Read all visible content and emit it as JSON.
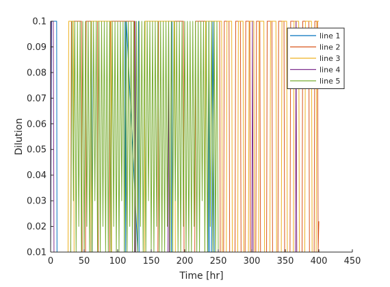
{
  "chart_data": {
    "type": "line",
    "xlabel": "Time [hr]",
    "ylabel": "Dilution",
    "xlim": [
      0,
      450
    ],
    "ylim": [
      0.01,
      0.1
    ],
    "xticks": [
      "0",
      "50",
      "100",
      "150",
      "200",
      "250",
      "300",
      "350",
      "400",
      "450"
    ],
    "yticks": [
      "0.01",
      "0.02",
      "0.03",
      "0.04",
      "0.05",
      "0.06",
      "0.07",
      "0.08",
      "0.09",
      "0.1"
    ],
    "grid": false,
    "legend_position": "top-right",
    "series": [
      {
        "name": "line 1",
        "color": "#0072BD",
        "x": [
          0,
          1.5,
          3,
          8,
          9,
          9.5,
          60,
          61,
          62,
          110,
          111,
          112,
          113,
          130,
          131,
          132,
          180,
          181,
          182,
          235,
          236,
          237,
          240,
          242,
          244
        ],
        "y": [
          0.01,
          0.1,
          0.1,
          0.1,
          0.1,
          0.01,
          0.01,
          0.1,
          0.01,
          0.01,
          0.1,
          0.01,
          0.1,
          0.01,
          0.1,
          0.01,
          0.01,
          0.1,
          0.01,
          0.01,
          0.1,
          0.01,
          0.01,
          0.1,
          0.01
        ]
      },
      {
        "name": "line 2",
        "color": "#D95319",
        "x": [
          0,
          30,
          31,
          46,
          47,
          52,
          53,
          70,
          71,
          88,
          89,
          125,
          126,
          160,
          161,
          198,
          199,
          215,
          216,
          252,
          253,
          258,
          259,
          266,
          267,
          275,
          276,
          283,
          284,
          290,
          291,
          297,
          298,
          306,
          307,
          312,
          313,
          322,
          323,
          330,
          331,
          339,
          340,
          348,
          349,
          357,
          358,
          366,
          367,
          375,
          376,
          385,
          386,
          393,
          394,
          398,
          399,
          400
        ],
        "y": [
          0.01,
          0.01,
          0.1,
          0.1,
          0.01,
          0.01,
          0.1,
          0.1,
          0.01,
          0.01,
          0.1,
          0.1,
          0.01,
          0.01,
          0.1,
          0.1,
          0.01,
          0.01,
          0.1,
          0.1,
          0.01,
          0.01,
          0.1,
          0.1,
          0.01,
          0.01,
          0.1,
          0.1,
          0.01,
          0.01,
          0.1,
          0.1,
          0.01,
          0.01,
          0.1,
          0.1,
          0.01,
          0.01,
          0.1,
          0.1,
          0.01,
          0.01,
          0.1,
          0.1,
          0.01,
          0.01,
          0.1,
          0.1,
          0.01,
          0.01,
          0.1,
          0.1,
          0.01,
          0.01,
          0.1,
          0.1,
          0.01,
          0.022
        ]
      },
      {
        "name": "line 3",
        "color": "#EDB120",
        "x": [
          0,
          26,
          27,
          34,
          35,
          60,
          61,
          90,
          91,
          140,
          141,
          185,
          186,
          230,
          231,
          255,
          256,
          262,
          263,
          270,
          271,
          279,
          280,
          287,
          288,
          295,
          296,
          303,
          304,
          310,
          311,
          318,
          319,
          327,
          328,
          336,
          337,
          344,
          345,
          352,
          353,
          362,
          363,
          370,
          371,
          379,
          380,
          389,
          390,
          396,
          397,
          400
        ],
        "y": [
          0.01,
          0.01,
          0.1,
          0.1,
          0.01,
          0.01,
          0.1,
          0.1,
          0.01,
          0.01,
          0.1,
          0.1,
          0.01,
          0.01,
          0.1,
          0.1,
          0.01,
          0.01,
          0.1,
          0.1,
          0.01,
          0.01,
          0.1,
          0.1,
          0.01,
          0.01,
          0.1,
          0.1,
          0.01,
          0.01,
          0.1,
          0.1,
          0.01,
          0.01,
          0.1,
          0.1,
          0.01,
          0.01,
          0.1,
          0.1,
          0.01,
          0.01,
          0.1,
          0.1,
          0.01,
          0.01,
          0.1,
          0.1,
          0.01,
          0.01,
          0.1,
          0.1
        ]
      },
      {
        "name": "line 4",
        "color": "#7E2F8E",
        "x": [
          0,
          1,
          2,
          4,
          5,
          125,
          126,
          127,
          175,
          176,
          177,
          300,
          301,
          302,
          365,
          366,
          367
        ],
        "y": [
          0.01,
          0.1,
          0.1,
          0.1,
          0.01,
          0.01,
          0.1,
          0.01,
          0.01,
          0.1,
          0.01,
          0.01,
          0.1,
          0.01,
          0.01,
          0.1,
          0.01
        ]
      },
      {
        "name": "line 5",
        "color": "#77AC30",
        "x": [
          0,
          30,
          32,
          34,
          36,
          38,
          40,
          42,
          44,
          46,
          48,
          50,
          52,
          54,
          56,
          58,
          60,
          62,
          64,
          66,
          68,
          70,
          72,
          74,
          76,
          78,
          80,
          82,
          84,
          86,
          88,
          90,
          92,
          94,
          96,
          98,
          100,
          102,
          104,
          106,
          108,
          110,
          112,
          114,
          116,
          118,
          120,
          122,
          124,
          126,
          128,
          130,
          132,
          134,
          136,
          138,
          140,
          142,
          144,
          146,
          148,
          150,
          152,
          154,
          156,
          158,
          160,
          162,
          164,
          166,
          168,
          170,
          172,
          174,
          176,
          178,
          180,
          182,
          184,
          186,
          188,
          190,
          192,
          194,
          196,
          198,
          200,
          202,
          204,
          206,
          208,
          210,
          212,
          214,
          216,
          218,
          220,
          222,
          224,
          226,
          228,
          230,
          232,
          234,
          236,
          238,
          240,
          242,
          244,
          246,
          248,
          250
        ],
        "y": [
          0.01,
          0.01,
          0.1,
          0.03,
          0.1,
          0.01,
          0.1,
          0.02,
          0.1,
          0.01,
          0.1,
          0.01,
          0.1,
          0.02,
          0.1,
          0.01,
          0.1,
          0.01,
          0.1,
          0.03,
          0.1,
          0.01,
          0.1,
          0.01,
          0.1,
          0.02,
          0.1,
          0.01,
          0.1,
          0.01,
          0.1,
          0.01,
          0.1,
          0.02,
          0.1,
          0.01,
          0.1,
          0.01,
          0.1,
          0.03,
          0.1,
          0.01,
          0.1,
          0.01,
          0.1,
          0.02,
          0.1,
          0.01,
          0.1,
          0.01,
          0.1,
          0.01,
          0.1,
          0.02,
          0.1,
          0.01,
          0.1,
          0.01,
          0.1,
          0.03,
          0.1,
          0.01,
          0.1,
          0.01,
          0.1,
          0.02,
          0.1,
          0.01,
          0.1,
          0.01,
          0.1,
          0.01,
          0.1,
          0.02,
          0.1,
          0.01,
          0.1,
          0.01,
          0.1,
          0.03,
          0.1,
          0.01,
          0.1,
          0.01,
          0.1,
          0.02,
          0.1,
          0.01,
          0.1,
          0.01,
          0.1,
          0.01,
          0.1,
          0.02,
          0.1,
          0.01,
          0.1,
          0.01,
          0.1,
          0.03,
          0.1,
          0.01,
          0.1,
          0.01,
          0.1,
          0.02,
          0.1,
          0.01,
          0.1,
          0.01,
          0.1,
          0.01
        ]
      }
    ]
  }
}
